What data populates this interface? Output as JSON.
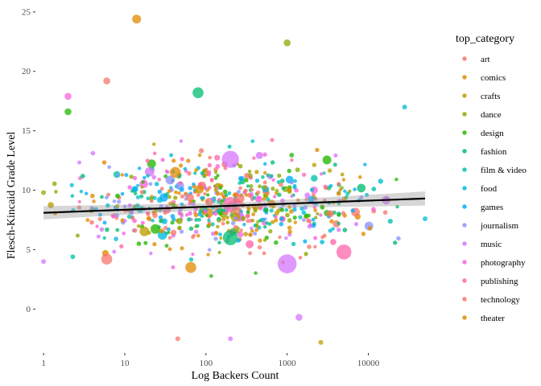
{
  "chart_data": {
    "type": "scatter",
    "title": "",
    "xlabel": "Log Backers Count",
    "ylabel": "Flesch-Kincaid Grade Level",
    "x_scale": "log10",
    "xlim": [
      0.85,
      60000
    ],
    "ylim": [
      -3.5,
      25.6
    ],
    "x_ticks": [
      1,
      10,
      100,
      1000,
      10000
    ],
    "x_tick_labels": [
      "1",
      "10",
      "100",
      "1000",
      "10000"
    ],
    "y_ticks": [
      0,
      5,
      10,
      15,
      20,
      25
    ],
    "y_tick_labels": [
      "0",
      "5",
      "10",
      "15",
      "20",
      "25"
    ],
    "grid": false,
    "legend_title": "top_category",
    "legend_position": "right",
    "categories": [
      {
        "name": "art",
        "color": "#F8766D"
      },
      {
        "name": "comics",
        "color": "#E18A00"
      },
      {
        "name": "crafts",
        "color": "#BE9C00"
      },
      {
        "name": "dance",
        "color": "#8CAB00"
      },
      {
        "name": "design",
        "color": "#24B700"
      },
      {
        "name": "fashion",
        "color": "#00BE70"
      },
      {
        "name": "film & video",
        "color": "#00C1AB"
      },
      {
        "name": "food",
        "color": "#00BBDA"
      },
      {
        "name": "games",
        "color": "#00ACFC"
      },
      {
        "name": "journalism",
        "color": "#8B93FF"
      },
      {
        "name": "music",
        "color": "#D575FE"
      },
      {
        "name": "photography",
        "color": "#F962DD"
      },
      {
        "name": "publishing",
        "color": "#FF65AC"
      },
      {
        "name": "technology",
        "color": "#F8766D"
      },
      {
        "name": "theater",
        "color": "#E18A00"
      }
    ],
    "legend_colors": [
      "#F8766D",
      "#E18A00",
      "#BE9C00",
      "#8CAB00",
      "#24B700",
      "#00BE70",
      "#00C1AB",
      "#00BBDA",
      "#00ACFC",
      "#8B93FF",
      "#D575FE",
      "#F962DD",
      "#FF65AC",
      "#F8766D",
      "#E18A00"
    ],
    "trend_line": {
      "type": "linear",
      "x": [
        1,
        50000
      ],
      "y": [
        8.1,
        9.3
      ],
      "band": 0.35,
      "color": "#000000"
    },
    "highlight_points": [
      {
        "x": 14,
        "y": 24.4,
        "category": "comics",
        "size": 3
      },
      {
        "x": 6,
        "y": 19.2,
        "category": "art",
        "size": 2
      },
      {
        "x": 80,
        "y": 18.2,
        "category": "fashion",
        "size": 4
      },
      {
        "x": 1000,
        "y": 22.4,
        "category": "dance",
        "size": 2
      },
      {
        "x": 2,
        "y": 17.9,
        "category": "photography",
        "size": 2
      },
      {
        "x": 2,
        "y": 16.6,
        "category": "design",
        "size": 2
      },
      {
        "x": 1000,
        "y": 3.8,
        "category": "music",
        "size": 8
      },
      {
        "x": 5000,
        "y": 4.8,
        "category": "publishing",
        "size": 6
      },
      {
        "x": 200,
        "y": 12.6,
        "category": "music",
        "size": 7
      },
      {
        "x": 200,
        "y": 6.0,
        "category": "fashion",
        "size": 6
      },
      {
        "x": 200,
        "y": 8.8,
        "category": "publishing",
        "size": 6
      },
      {
        "x": 6,
        "y": 4.2,
        "category": "art",
        "size": 4
      },
      {
        "x": 65,
        "y": 3.5,
        "category": "comics",
        "size": 4
      },
      {
        "x": 42,
        "y": 11.5,
        "category": "comics",
        "size": 4
      },
      {
        "x": 1400,
        "y": -0.7,
        "category": "music",
        "size": 2
      },
      {
        "x": 45,
        "y": -2.5,
        "category": "art",
        "size": 1
      },
      {
        "x": 200,
        "y": -2.5,
        "category": "music",
        "size": 1
      },
      {
        "x": 2600,
        "y": -2.8,
        "category": "crafts",
        "size": 1
      },
      {
        "x": 1,
        "y": 9.8,
        "category": "dance",
        "size": 1
      },
      {
        "x": 1,
        "y": 4.0,
        "category": "music",
        "size": 1
      },
      {
        "x": 50000,
        "y": 7.6,
        "category": "food",
        "size": 1
      },
      {
        "x": 28000,
        "y": 17.0,
        "category": "food",
        "size": 1
      }
    ],
    "background_cloud": {
      "n_points": 700,
      "x_log_range": [
        0,
        4.5
      ],
      "y_center": 8.7,
      "y_spread": 3.4
    }
  }
}
